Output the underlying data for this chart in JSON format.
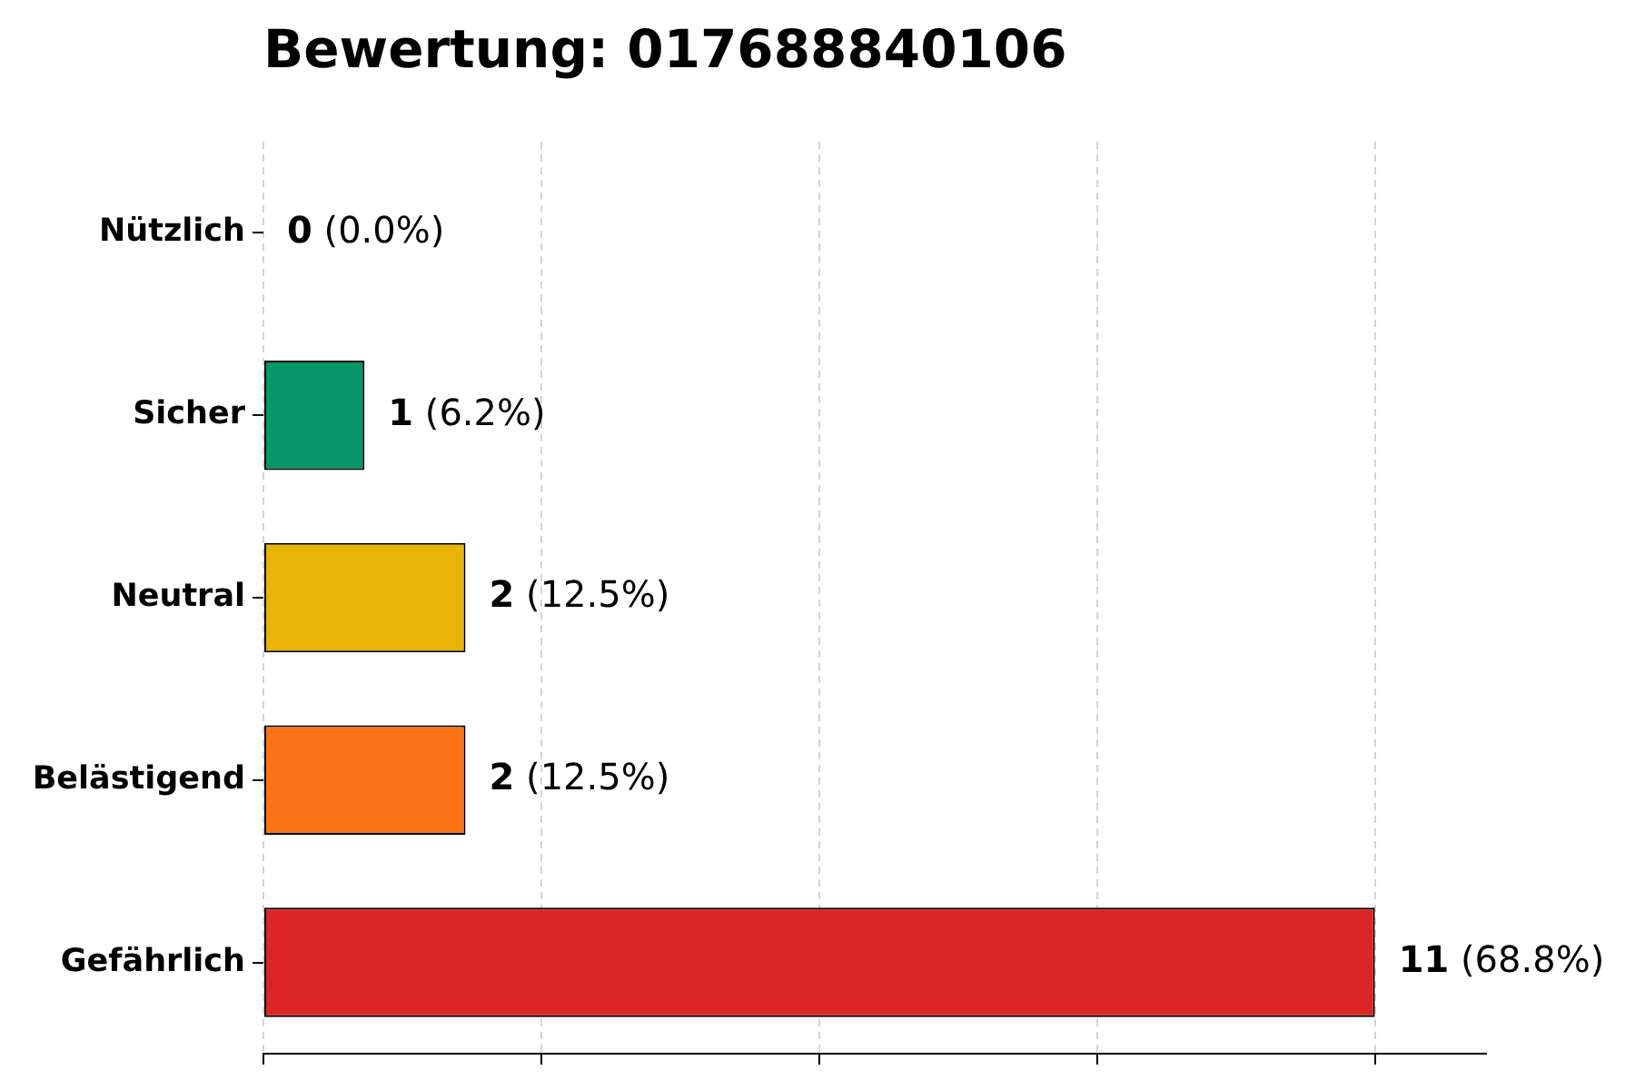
{
  "chart_data": {
    "type": "bar",
    "title": "Bewertung: 017688840106",
    "orientation": "horizontal",
    "categories": [
      "Nützlich",
      "Sicher",
      "Neutral",
      "Belästigend",
      "Gefährlich"
    ],
    "values": [
      0,
      1,
      2,
      2,
      11
    ],
    "colors": [
      "#3b82f6",
      "#059669",
      "#eab308",
      "#f97316",
      "#dc2626"
    ],
    "value_labels": [
      "0 (0.0%)",
      "1 (6.2%)",
      "2 (12.5%)",
      "2 (12.5%)",
      "11 (68.8%)"
    ],
    "xlim": [
      0,
      12.1
    ],
    "xticks": [
      {
        "value": 0,
        "label": null
      },
      {
        "value": 2.75,
        "label": null
      },
      {
        "value": 5.5,
        "label": null
      },
      {
        "value": 8.25,
        "label": null
      },
      {
        "value": 11,
        "label": null
      }
    ],
    "grid": "x",
    "tick_labels": "y"
  }
}
